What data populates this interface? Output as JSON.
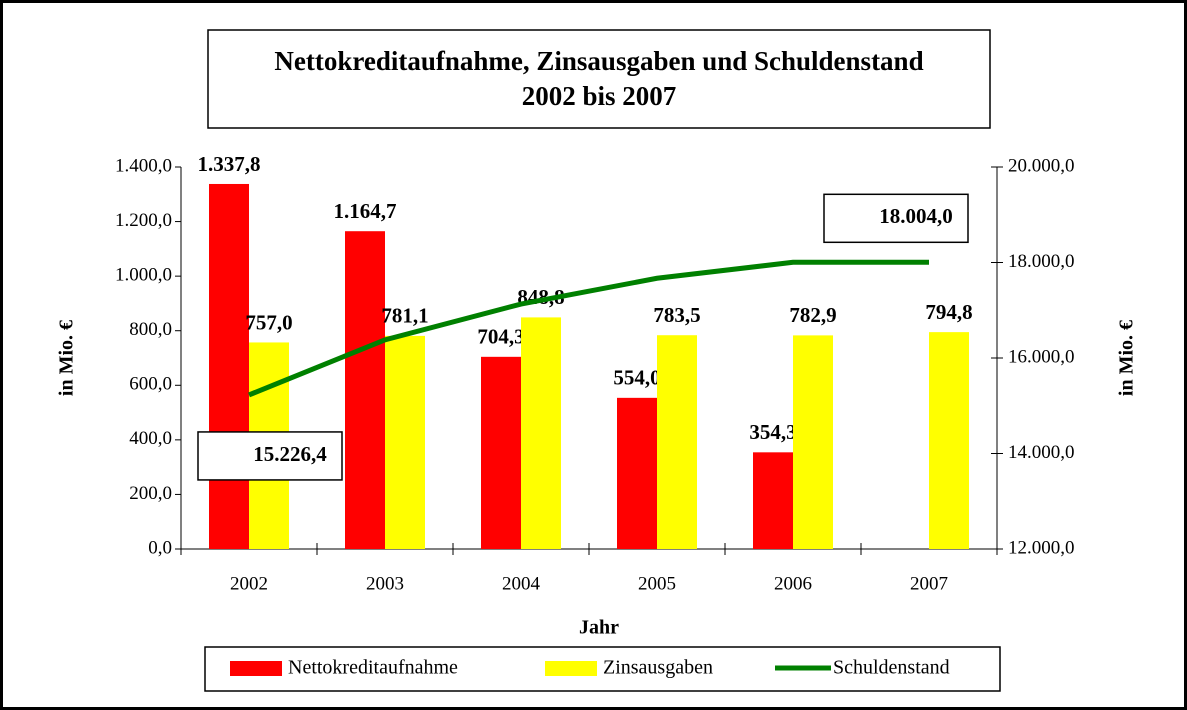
{
  "chart_data": {
    "type": "bar",
    "title": [
      "Nettokreditaufnahme, Zinsausgaben und Schuldenstand",
      "2002 bis 2007"
    ],
    "xlabel": "Jahr",
    "ylabel": "in Mio. €",
    "y2label": "in Mio. €",
    "categories": [
      "2002",
      "2003",
      "2004",
      "2005",
      "2006",
      "2007"
    ],
    "series": [
      {
        "name": "Nettokreditaufnahme",
        "type": "bar",
        "color": "#ff0000",
        "values": [
          1337.8,
          1164.7,
          704.3,
          554.0,
          354.3,
          null
        ],
        "value_labels": [
          "1.337,8",
          "1.164,7",
          "704,3",
          "554,0",
          "354,3",
          null
        ]
      },
      {
        "name": "Zinsausgaben",
        "type": "bar",
        "color": "#ffff00",
        "values": [
          757.0,
          781.1,
          848.8,
          783.5,
          782.9,
          794.8
        ],
        "value_labels": [
          "757,0",
          "781,1",
          "848,8",
          "783,5",
          "782,9",
          "794,8"
        ]
      },
      {
        "name": "Schuldenstand",
        "type": "line",
        "axis": "y2",
        "color": "#008000",
        "values": [
          15226.4,
          16380,
          17130,
          17670,
          18004.0,
          18004.0
        ],
        "value_labels": [
          "15.226,4",
          null,
          null,
          null,
          null,
          "18.004,0"
        ]
      }
    ],
    "ylim": [
      0,
      1400
    ],
    "yticks": [
      {
        "value": 0,
        "label": "0,0"
      },
      {
        "value": 200,
        "label": "200,0"
      },
      {
        "value": 400,
        "label": "400,0"
      },
      {
        "value": 600,
        "label": "600,0"
      },
      {
        "value": 800,
        "label": "800,0"
      },
      {
        "value": 1000,
        "label": "1.000,0"
      },
      {
        "value": 1200,
        "label": "1.200,0"
      },
      {
        "value": 1400,
        "label": "1.400,0"
      }
    ],
    "y2lim": [
      12000,
      20000
    ],
    "y2ticks": [
      {
        "value": 12000,
        "label": "12.000,0"
      },
      {
        "value": 14000,
        "label": "14.000,0"
      },
      {
        "value": 16000,
        "label": "16.000,0"
      },
      {
        "value": 18000,
        "label": "18.000,0"
      },
      {
        "value": 20000,
        "label": "20.000,0"
      }
    ],
    "grid": false,
    "legend": "bottom"
  }
}
